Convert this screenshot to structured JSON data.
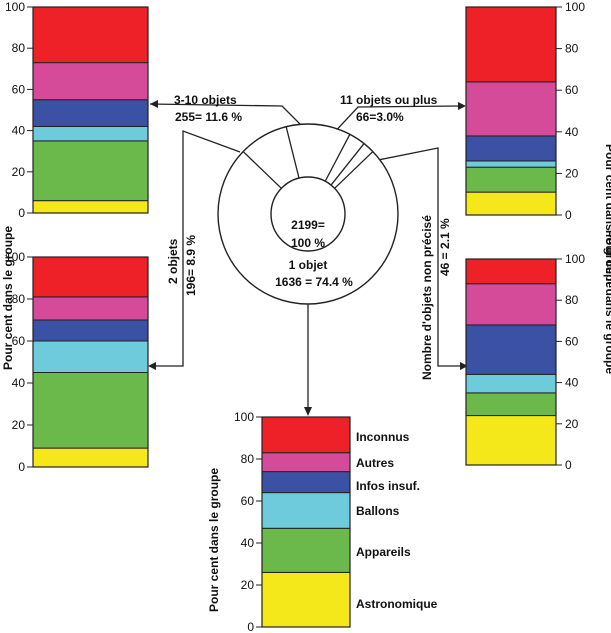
{
  "colors": {
    "Inconnus": "#ee2028",
    "Autres": "#d64a9a",
    "Infos insuf.": "#3b51a3",
    "Ballons": "#6ecbdc",
    "Appareils": "#6bb94b",
    "Astronomique": "#f4e81a"
  },
  "y_label": "Pour cent dans le groupe",
  "pie": {
    "center_value": "2199=",
    "center_pct": "100 %",
    "slices": [
      {
        "name": "1 objet",
        "value": 1636,
        "pct": 74.4
      },
      {
        "name": "2 objets",
        "value": 196,
        "pct": 8.9
      },
      {
        "name": "3-10 objets",
        "value": 255,
        "pct": 11.6
      },
      {
        "name": "11 objets ou plus",
        "value": 66,
        "pct": 3.0
      },
      {
        "name": "Nombre d'objets non précisé",
        "value": 46,
        "pct": 2.1
      }
    ]
  },
  "annotations": {
    "three_ten_line1": "3-10 objets",
    "three_ten_line2": "255= 11.6 %",
    "eleven_line1": "11 objets ou plus",
    "eleven_line2": "66=3.0%",
    "two_line1": "2 objets",
    "two_line2": "196= 8.9 %",
    "np_line1": "Nombre d'objets non précisé",
    "np_line2": "46 = 2.1 %",
    "one_line1": "1 objet",
    "one_line2": "1636 = 74.4 %"
  },
  "legend": [
    "Inconnus",
    "Autres",
    "Infos insuf.",
    "Ballons",
    "Appareils",
    "Astronomique"
  ],
  "chart_data": [
    {
      "type": "bar",
      "group": "3-10 objets",
      "ylabel": "Pour cent dans le groupe",
      "ylim": [
        0,
        100
      ],
      "ticks": [
        "100",
        "80",
        "60",
        "40",
        "20",
        "0"
      ],
      "series": [
        {
          "name": "Astronomique",
          "value": 6
        },
        {
          "name": "Appareils",
          "value": 29
        },
        {
          "name": "Ballons",
          "value": 7
        },
        {
          "name": "Infos insuf.",
          "value": 13
        },
        {
          "name": "Autres",
          "value": 18
        },
        {
          "name": "Inconnus",
          "value": 27
        }
      ]
    },
    {
      "type": "bar",
      "group": "2 objets",
      "ylabel": "Pour cent dans le groupe",
      "ylim": [
        0,
        100
      ],
      "ticks": [
        "100",
        "80",
        "60",
        "40",
        "20",
        "0"
      ],
      "series": [
        {
          "name": "Astronomique",
          "value": 9
        },
        {
          "name": "Appareils",
          "value": 36
        },
        {
          "name": "Ballons",
          "value": 15
        },
        {
          "name": "Infos insuf.",
          "value": 10
        },
        {
          "name": "Autres",
          "value": 11
        },
        {
          "name": "Inconnus",
          "value": 19
        }
      ]
    },
    {
      "type": "bar",
      "group": "11 objets ou plus",
      "ylabel": "Pour cent dans le groupe",
      "ylim": [
        0,
        100
      ],
      "ticks": [
        "100",
        "80",
        "60",
        "40",
        "20",
        "0"
      ],
      "series": [
        {
          "name": "Astronomique",
          "value": 11
        },
        {
          "name": "Appareils",
          "value": 12
        },
        {
          "name": "Ballons",
          "value": 3
        },
        {
          "name": "Infos insuf.",
          "value": 12
        },
        {
          "name": "Autres",
          "value": 26
        },
        {
          "name": "Inconnus",
          "value": 36
        }
      ]
    },
    {
      "type": "bar",
      "group": "Nombre d'objets non précisé",
      "ylabel": "Pour cent dans le groupe",
      "ylim": [
        0,
        100
      ],
      "ticks": [
        "100",
        "80",
        "60",
        "40",
        "20",
        "0"
      ],
      "series": [
        {
          "name": "Astronomique",
          "value": 24
        },
        {
          "name": "Appareils",
          "value": 11
        },
        {
          "name": "Ballons",
          "value": 9
        },
        {
          "name": "Infos insuf.",
          "value": 24
        },
        {
          "name": "Autres",
          "value": 20
        },
        {
          "name": "Inconnus",
          "value": 12
        }
      ]
    },
    {
      "type": "bar",
      "group": "1 objet",
      "ylabel": "Pour cent dans le groupe",
      "ylim": [
        0,
        100
      ],
      "ticks": [
        "100",
        "80",
        "60",
        "40",
        "20",
        "0"
      ],
      "series": [
        {
          "name": "Astronomique",
          "value": 26
        },
        {
          "name": "Appareils",
          "value": 21
        },
        {
          "name": "Ballons",
          "value": 17
        },
        {
          "name": "Infos insuf.",
          "value": 10
        },
        {
          "name": "Autres",
          "value": 9
        },
        {
          "name": "Inconnus",
          "value": 17
        }
      ]
    }
  ]
}
